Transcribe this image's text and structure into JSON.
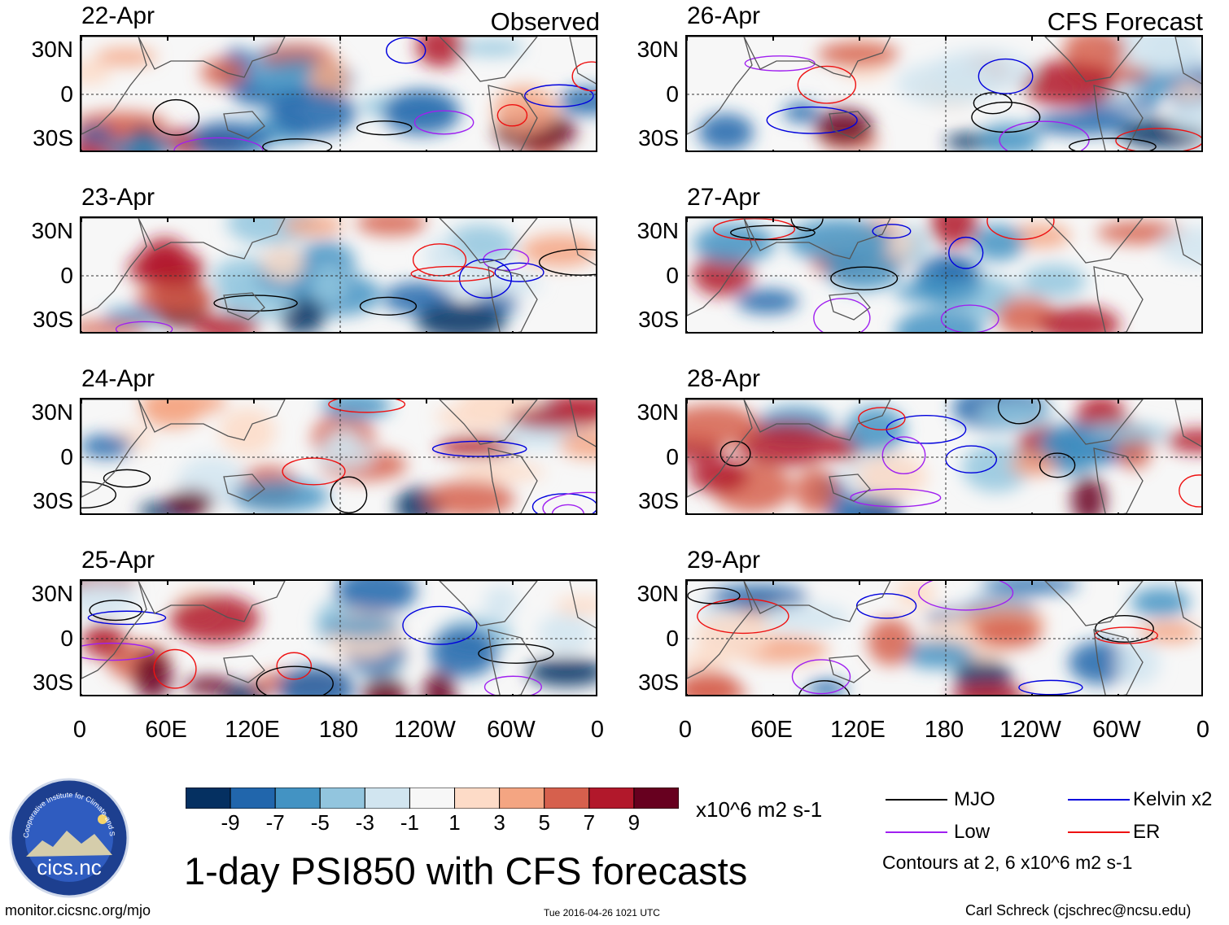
{
  "figure": {
    "title": "1-day PSI850 with CFS forecasts",
    "left_header": "Observed",
    "right_header": "CFS Forecast",
    "url": "monitor.cicsnc.org/mjo",
    "timestamp": "Tue 2016-04-26 1021 UTC",
    "author": "Carl Schreck (cjschrec@ncsu.edu)",
    "logo_text": "cics.nc",
    "logo_ring_text": "Cooperative Institute for Climate and Satellites"
  },
  "chart_data": {
    "type": "heatmap",
    "variable": "PSI850",
    "units": "x10^6 m2 s-1",
    "panels": [
      {
        "date": "22-Apr",
        "source": "Observed"
      },
      {
        "date": "23-Apr",
        "source": "Observed"
      },
      {
        "date": "24-Apr",
        "source": "Observed"
      },
      {
        "date": "25-Apr",
        "source": "Observed"
      },
      {
        "date": "26-Apr",
        "source": "CFS Forecast"
      },
      {
        "date": "27-Apr",
        "source": "CFS Forecast"
      },
      {
        "date": "28-Apr",
        "source": "CFS Forecast"
      },
      {
        "date": "29-Apr",
        "source": "CFS Forecast"
      }
    ],
    "lat_ticks": [
      "30N",
      "0",
      "30S"
    ],
    "lon_ticks": [
      "0",
      "60E",
      "120E",
      "180",
      "120W",
      "60W",
      "0"
    ],
    "colorbar": {
      "tick_labels": [
        "-9",
        "-7",
        "-5",
        "-3",
        "-1",
        "1",
        "3",
        "5",
        "7",
        "9"
      ],
      "colors": [
        "#053061",
        "#2166ac",
        "#4393c3",
        "#92c5de",
        "#d1e5f0",
        "#f7f7f7",
        "#fddbc7",
        "#f4a582",
        "#d6604d",
        "#b2182b",
        "#67001f"
      ]
    },
    "contour_legend": [
      {
        "label": "MJO",
        "color": "#000000"
      },
      {
        "label": "Kelvin x2",
        "color": "#0000dd"
      },
      {
        "label": "Low",
        "color": "#a020f0"
      },
      {
        "label": "ER",
        "color": "#ee1111"
      }
    ],
    "contour_note": "Contours at 2, 6 x10^6 m2 s-1"
  }
}
